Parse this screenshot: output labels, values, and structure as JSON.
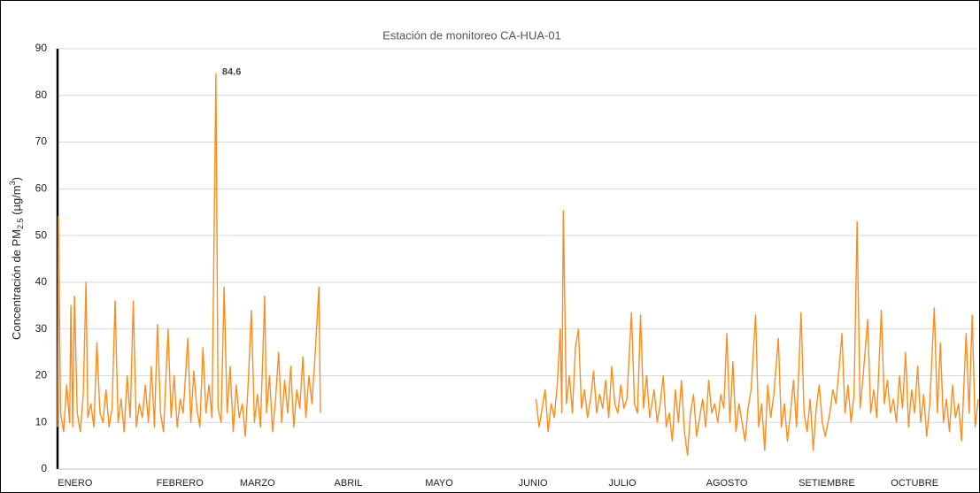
{
  "chart_data": {
    "type": "line",
    "title": "Estación de monitoreo CA-HUA-01",
    "ylabel": {
      "text": "Concentración de PM",
      "sub": "2.5",
      "unit": " (µg/m",
      "sup": "3",
      "end": ")"
    },
    "xlim": [
      0,
      304
    ],
    "xticks": [
      {
        "value": 5.8,
        "label": "ENERO"
      },
      {
        "value": 40.4,
        "label": "FEBRERO"
      },
      {
        "value": 66,
        "label": "MARZO"
      },
      {
        "value": 96,
        "label": "ABRIL"
      },
      {
        "value": 126,
        "label": "MAYO"
      },
      {
        "value": 157,
        "label": "JUNIO"
      },
      {
        "value": 186.5,
        "label": "JULIO"
      },
      {
        "value": 221,
        "label": "AGOSTO"
      },
      {
        "value": 254,
        "label": "SETIEMBRE"
      },
      {
        "value": 283,
        "label": "OCTUBRE"
      }
    ],
    "ylim": [
      0,
      90
    ],
    "yticks": [
      0,
      10,
      20,
      30,
      40,
      50,
      60,
      70,
      80,
      90
    ],
    "grid": true,
    "x": [
      0,
      0.3,
      1,
      2,
      3,
      4,
      4.4,
      5,
      5.6,
      6.5,
      7.5,
      8.5,
      9.4,
      10,
      11,
      12,
      13,
      14,
      15,
      16,
      17,
      18,
      19,
      20,
      21,
      22,
      23,
      24,
      25,
      26,
      27,
      28,
      29,
      30,
      31,
      32,
      33,
      34,
      35,
      36.5,
      37.5,
      38.5,
      39.5,
      40.5,
      41.5,
      43,
      44,
      45,
      46,
      47,
      48,
      49,
      50,
      51,
      52.3,
      53,
      54,
      55,
      56,
      57,
      58,
      59,
      60,
      61,
      62,
      63,
      64,
      65,
      66,
      67,
      68.4,
      69,
      70,
      71,
      72,
      73,
      74,
      75,
      76,
      77,
      78,
      79,
      80,
      81,
      82,
      83,
      84,
      85,
      86.3,
      86.8,
      120,
      158,
      159,
      160,
      161,
      162,
      163,
      164,
      165,
      166,
      166.5,
      167,
      168,
      169,
      170,
      171,
      172,
      173,
      174,
      175,
      176,
      177,
      178,
      179,
      180,
      181,
      182,
      183,
      184,
      185,
      186,
      187,
      188,
      189.5,
      190.5,
      191.5,
      192.5,
      193.5,
      194.5,
      195.5,
      197,
      198,
      199,
      200,
      201,
      202,
      203,
      204,
      205,
      206,
      207,
      208,
      209,
      210,
      211,
      212,
      213,
      214,
      215,
      216,
      217,
      218,
      219,
      220,
      221,
      222,
      223,
      224,
      225,
      226,
      227,
      228,
      229,
      230.5,
      231.5,
      232.5,
      233.5,
      234.5,
      235.5,
      236.5,
      238,
      239,
      240,
      241,
      242,
      243,
      244,
      245.5,
      246.5,
      247.5,
      248.5,
      249.5,
      250.5,
      251.5,
      252.5,
      253.5,
      255,
      256,
      257,
      258,
      259,
      260,
      261,
      262,
      263,
      264,
      265,
      266,
      267.5,
      268.5,
      269.5,
      270.5,
      272,
      273,
      274,
      275,
      276,
      277,
      278,
      279,
      280,
      281,
      282,
      283,
      284,
      285,
      286,
      287,
      288,
      289.5,
      290.5,
      291.5,
      292.5,
      293.5,
      294.5,
      295.5,
      296.5,
      297.5,
      298.5,
      300,
      301,
      302,
      303,
      304
    ],
    "series": [
      {
        "name": "PM2.5",
        "color": "#ff8c1a",
        "values": [
          9,
          54,
          12,
          8,
          18,
          10,
          35,
          9,
          37,
          12,
          8,
          16,
          40,
          11,
          14,
          9,
          27,
          12,
          10,
          17,
          9,
          13,
          36,
          10,
          15,
          8,
          20,
          11,
          36,
          9,
          14,
          11,
          18,
          10,
          22,
          9,
          31,
          12,
          8,
          30,
          11,
          20,
          9,
          15,
          12,
          28,
          10,
          21,
          13,
          9,
          26,
          12,
          18,
          11,
          84.6,
          13,
          10,
          39,
          12,
          22,
          8,
          18,
          11,
          14,
          7,
          19,
          34,
          10,
          16,
          9,
          37,
          12,
          20,
          8,
          15,
          25,
          10,
          19,
          12,
          22,
          9,
          17,
          13,
          24,
          11,
          20,
          14,
          24,
          39,
          12,
          null,
          15,
          9,
          13,
          17,
          8,
          14,
          11,
          18,
          30,
          12,
          55.3,
          14,
          20,
          12,
          26,
          30,
          13,
          17,
          11,
          15,
          21,
          12,
          16,
          13,
          19,
          11,
          22,
          14,
          12,
          18,
          13,
          15,
          33.5,
          14,
          12,
          33,
          13,
          20,
          11,
          17,
          10,
          14,
          20,
          9,
          12,
          6,
          17,
          10,
          19,
          8,
          3,
          12,
          16,
          7,
          11,
          15,
          9,
          19,
          12,
          14,
          10,
          16,
          13,
          29,
          10,
          23,
          8,
          14,
          10,
          6,
          13,
          17,
          33,
          9,
          14,
          4,
          18,
          11,
          16,
          28,
          9,
          14,
          6,
          12,
          19,
          9,
          33.5,
          12,
          8,
          15,
          4,
          13,
          18,
          10,
          7,
          12,
          17,
          14,
          21,
          29,
          12,
          18,
          10,
          16,
          53,
          13,
          20,
          32,
          12,
          17,
          11,
          34,
          14,
          19,
          12,
          15,
          10,
          20,
          13,
          25,
          9,
          17,
          12,
          22,
          10,
          16,
          7,
          14,
          34.5,
          12,
          27,
          10,
          15,
          8,
          18,
          11,
          14,
          6,
          29,
          12,
          33,
          9,
          15
        ]
      }
    ]
  }
}
